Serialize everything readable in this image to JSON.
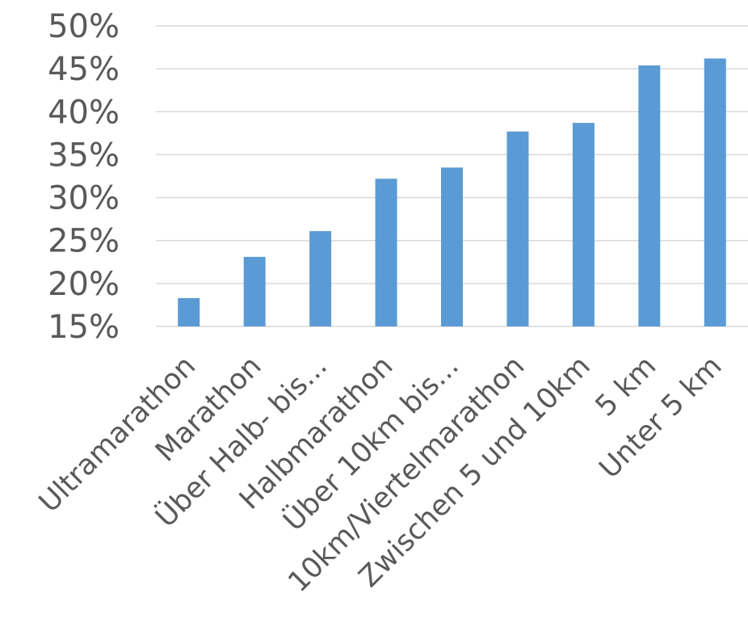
{
  "chart_data": {
    "type": "bar",
    "title": "",
    "xlabel": "",
    "ylabel": "",
    "categories": [
      "Ultramarathon",
      "Marathon",
      "Über Halb- bis...",
      "Halbmarathon",
      "Über 10km bis...",
      "10km/Viertelmarathon",
      "Zwischen 5 und 10km",
      "5 km",
      "Unter 5 km"
    ],
    "values": [
      18.3,
      23.1,
      26.1,
      32.2,
      33.5,
      37.7,
      38.7,
      45.4,
      46.2
    ],
    "ylim": [
      15,
      50
    ],
    "y_ticks": [
      "15%",
      "20%",
      "25%",
      "30%",
      "35%",
      "40%",
      "45%",
      "50%"
    ],
    "y_tick_values": [
      15,
      20,
      25,
      30,
      35,
      40,
      45,
      50
    ],
    "bar_color": "#5b9bd5",
    "grid": true,
    "legend": "none"
  }
}
